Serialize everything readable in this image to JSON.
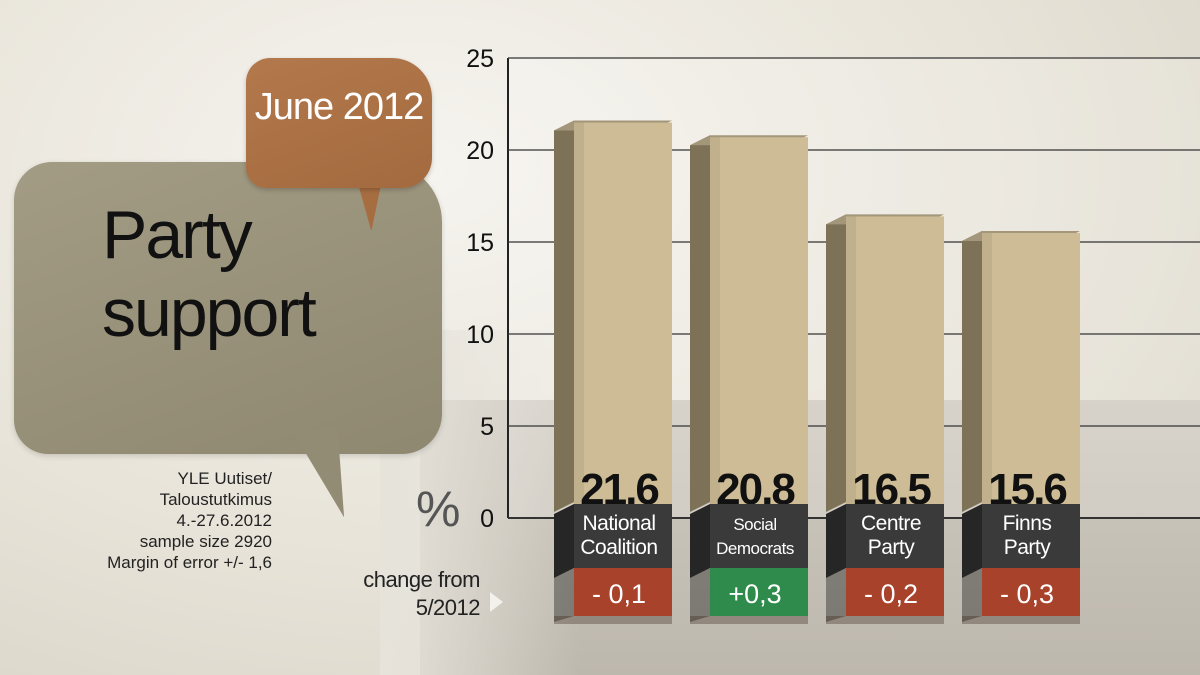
{
  "header": {
    "date_label": "June 2012",
    "title_line1": "Party",
    "title_line2": "support"
  },
  "source": {
    "lines": [
      "YLE Uutiset/",
      "Taloustutkimus",
      "4.-27.6.2012",
      "sample size 2920",
      "Margin of error +/- 1,6"
    ]
  },
  "unit_label": "%",
  "change_label_line1": "change from",
  "change_label_line2": "5/2012",
  "colors": {
    "bar_front": "#cdbc95",
    "bar_side": "#7d7258",
    "bar_top": "#a3967a",
    "label_band": "#3a3a3a",
    "change_negative": "#a8422a",
    "change_positive": "#2e8b4c"
  },
  "chart_data": {
    "type": "bar",
    "title": "Party support",
    "categories": [
      "National Coalition",
      "Social Democrats",
      "Centre Party",
      "Finns Party"
    ],
    "category_lines": [
      [
        "National",
        "Coalition"
      ],
      [
        "Social",
        "Democrats"
      ],
      [
        "Centre",
        "Party"
      ],
      [
        "Finns",
        "Party"
      ]
    ],
    "values": [
      21.6,
      20.8,
      16.5,
      15.6
    ],
    "value_labels": [
      "21,6",
      "20,8",
      "16,5",
      "15,6"
    ],
    "change": [
      -0.1,
      0.3,
      -0.2,
      -0.3
    ],
    "change_labels": [
      "- 0,1",
      "+0,3",
      "- 0,2",
      "- 0,3"
    ],
    "ylim": [
      0,
      25
    ],
    "yticks": [
      0,
      5,
      10,
      15,
      20,
      25
    ],
    "ylabel": "%",
    "grid": true
  }
}
